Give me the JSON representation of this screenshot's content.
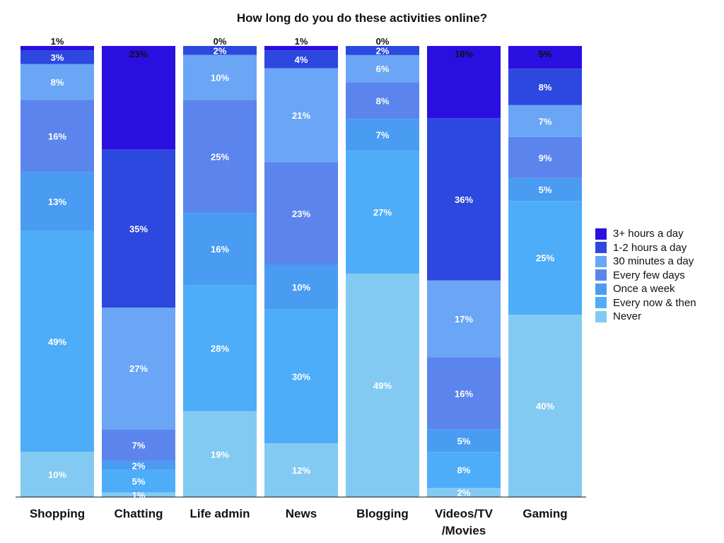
{
  "chart_data": {
    "type": "bar",
    "stacked": true,
    "normalized": true,
    "title": "How long do you do these activities online?",
    "categories": [
      [
        "Shopping"
      ],
      [
        "Chatting"
      ],
      [
        "Life admin"
      ],
      [
        "News"
      ],
      [
        "Blogging"
      ],
      [
        "Videos/TV",
        "/Movies"
      ],
      [
        "Gaming"
      ]
    ],
    "ylim": [
      0,
      100
    ],
    "grid": false,
    "legend_position": "right",
    "series": [
      {
        "name": "3+ hours a day",
        "color": "#2a0fe0",
        "values": [
          1,
          23,
          0,
          1,
          0,
          16,
          5
        ]
      },
      {
        "name": "1-2 hours a day",
        "color": "#2d48de",
        "values": [
          3,
          35,
          2,
          4,
          2,
          36,
          8
        ]
      },
      {
        "name": "30 minutes a day",
        "color": "#6aa6f5",
        "values": [
          8,
          27,
          10,
          21,
          6,
          17,
          7
        ]
      },
      {
        "name": "Every few days",
        "color": "#5b85ec",
        "values": [
          16,
          7,
          25,
          23,
          8,
          16,
          9
        ]
      },
      {
        "name": "Once a week",
        "color": "#4a9cf2",
        "values": [
          13,
          2,
          16,
          10,
          7,
          5,
          5
        ]
      },
      {
        "name": "Every now & then",
        "color": "#4dadf8",
        "values": [
          49,
          5,
          28,
          30,
          27,
          8,
          25
        ]
      },
      {
        "name": "Never",
        "color": "#83caf2",
        "values": [
          10,
          1,
          19,
          12,
          49,
          2,
          40
        ]
      }
    ],
    "value_labels": [
      [
        "1%",
        "3%",
        "8%",
        "16%",
        "13%",
        "49%",
        "10%"
      ],
      [
        "23%",
        "35%",
        "27%",
        "7%",
        "2%",
        "5%",
        "1%"
      ],
      [
        "0%",
        "2%",
        "10%",
        "25%",
        "16%",
        "28%",
        "19%"
      ],
      [
        "1%",
        "4%",
        "21%",
        "23%",
        "10%",
        "30%",
        "12%"
      ],
      [
        "0%",
        "2%",
        "6%",
        "8%",
        "7%",
        "27%",
        "49%"
      ],
      [
        "16%",
        "36%",
        "17%",
        "16%",
        "5%",
        "8%",
        "2%"
      ],
      [
        "5%",
        "8%",
        "7%",
        "9%",
        "5%",
        "25%",
        "40%"
      ]
    ]
  }
}
